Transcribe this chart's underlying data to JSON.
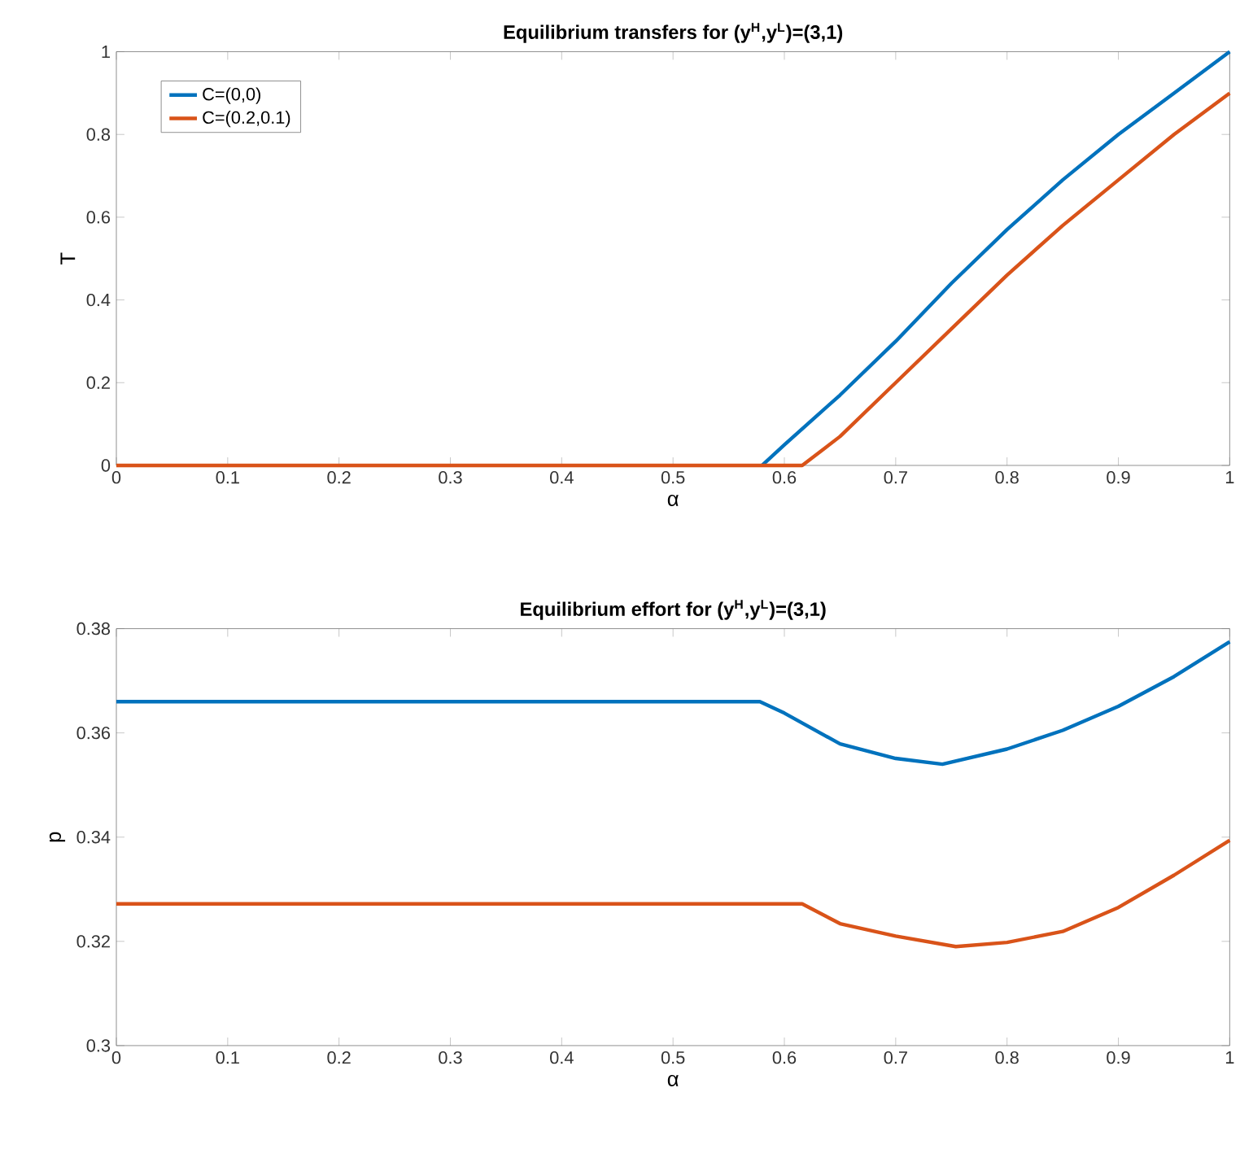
{
  "chart_data": [
    {
      "type": "line",
      "title": "**Equilibrium transfers for (y$^{H}$,y$^{L}$)=(3,1)**",
      "xlabel": "α",
      "ylabel": "T",
      "xlim": [
        0,
        1
      ],
      "ylim": [
        0,
        1
      ],
      "xticks": [
        0,
        0.1,
        0.2,
        0.3,
        0.4,
        0.5,
        0.6,
        0.7,
        0.8,
        0.9,
        1
      ],
      "yticks": [
        0,
        0.2,
        0.4,
        0.6,
        0.8,
        1
      ],
      "legend": "top left",
      "series": [
        {
          "name": "C=(0,0)",
          "color": "#0072bd",
          "x": [
            0.58,
            0.6,
            0.65,
            0.7,
            0.75,
            0.8,
            0.85,
            0.9,
            0.95,
            1
          ],
          "values": [
            0,
            0.05,
            0.17,
            0.3,
            0.44,
            0.57,
            0.69,
            0.8,
            0.9,
            1
          ]
        },
        {
          "name": "C=(0.2,0.1)",
          "color": "#d95319",
          "x": [
            0,
            0.616,
            0.65,
            0.7,
            0.75,
            0.8,
            0.85,
            0.9,
            0.95,
            1
          ],
          "values": [
            0,
            0,
            0.07,
            0.2,
            0.33,
            0.46,
            0.58,
            0.69,
            0.8,
            0.9
          ]
        }
      ]
    },
    {
      "type": "line",
      "title": "**Equilibrium effort for (y$^{H}$,y$^{L}$)=(3,1)**",
      "xlabel": "α",
      "ylabel": "p",
      "xlim": [
        0,
        1
      ],
      "ylim": [
        0.3,
        0.38
      ],
      "xticks": [
        0,
        0.1,
        0.2,
        0.3,
        0.4,
        0.5,
        0.6,
        0.7,
        0.8,
        0.9,
        1
      ],
      "yticks": [
        0.3,
        0.32,
        0.34,
        0.36,
        0.38
      ],
      "series": [
        {
          "color": "#0072bd",
          "x": [
            0,
            0.578,
            0.6,
            0.65,
            0.7,
            0.742,
            0.8,
            0.85,
            0.9,
            0.95,
            1
          ],
          "values": [
            0.366,
            0.366,
            0.3638,
            0.3579,
            0.3551,
            0.354,
            0.3569,
            0.3605,
            0.3651,
            0.3708,
            0.3775
          ]
        },
        {
          "color": "#d95319",
          "x": [
            0,
            0.616,
            0.65,
            0.7,
            0.754,
            0.8,
            0.85,
            0.9,
            0.95,
            1
          ],
          "values": [
            0.3272,
            0.3272,
            0.3234,
            0.321,
            0.319,
            0.3198,
            0.3219,
            0.3265,
            0.3327,
            0.3394
          ]
        }
      ]
    }
  ]
}
